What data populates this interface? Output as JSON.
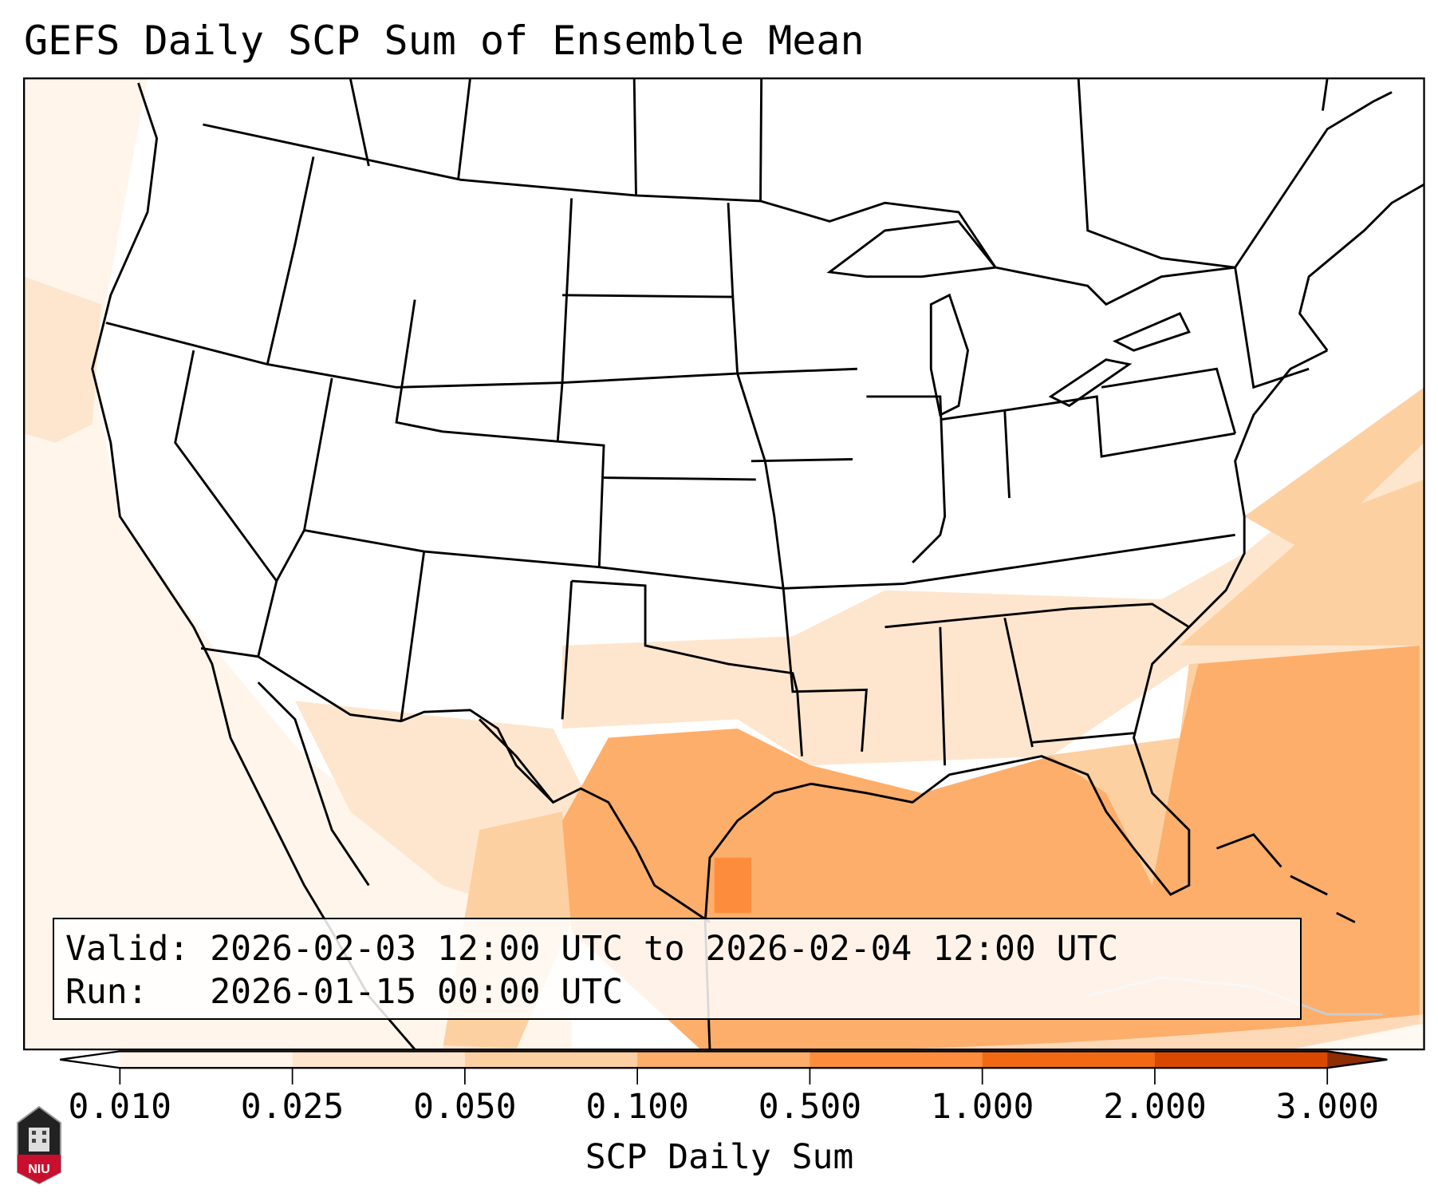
{
  "title": "GEFS Daily SCP Sum of Ensemble Mean",
  "info": {
    "valid_label": "Valid:",
    "valid_value": "2026-02-03 12:00 UTC to 2026-02-04 12:00 UTC",
    "run_label": "Run:",
    "run_value": "2026-01-15 00:00 UTC"
  },
  "colorbar": {
    "label": "SCP Daily Sum",
    "ticks": [
      "0.010",
      "0.025",
      "0.050",
      "0.100",
      "0.500",
      "1.000",
      "2.000",
      "3.000"
    ],
    "colors": [
      "#fff5eb",
      "#fee6ce",
      "#fdd0a2",
      "#fdae6b",
      "#fd8d3c",
      "#f16913",
      "#d94801",
      "#8c2d04"
    ],
    "under_color": "#ffffff",
    "over_color": "#8c2d04"
  },
  "logo": {
    "text": "NIU"
  }
}
